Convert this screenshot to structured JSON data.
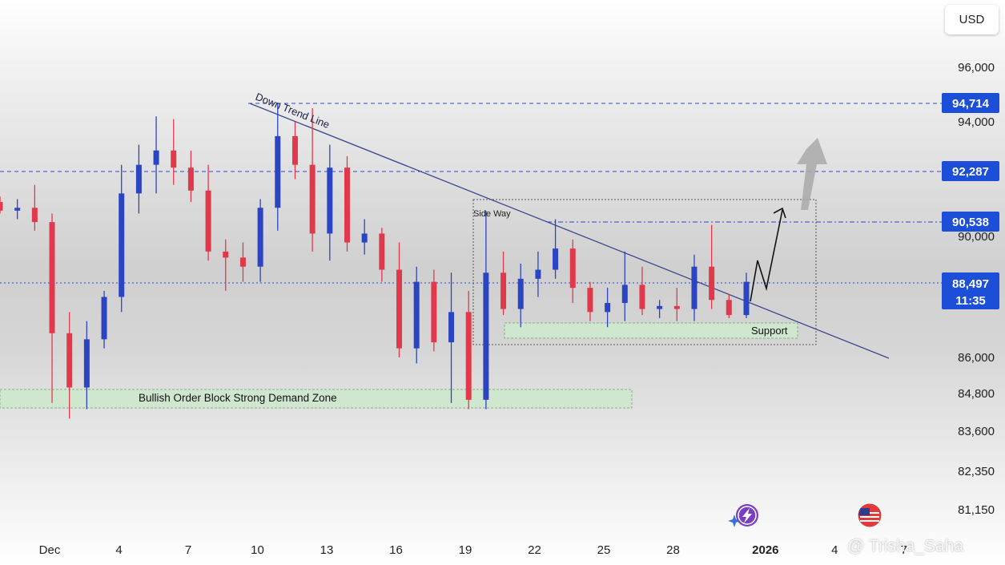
{
  "currency_button": "USD",
  "watermark": "@ Trisha_Saha",
  "price_tags": {
    "level_94714": "94,714",
    "level_92287": "92,287",
    "level_90538": "90,538",
    "current_price": "88,497",
    "countdown": "11:35"
  },
  "annotations": {
    "down_trend_line": "Down Trend Line",
    "side_way": "Side Way",
    "support": "Support",
    "demand_zone": "Bullish Order Block Strong Demand Zone"
  },
  "colors": {
    "bull": "#2b45c2",
    "bear": "#e0394b",
    "accent": "#1c4ed8",
    "zone_fill": "#cfe8cf",
    "trend_line": "#39488f"
  },
  "icons": [
    "lightning-event-icon",
    "us-flag-event-icon"
  ],
  "chart_data": {
    "type": "candlestick",
    "y_ticks": [
      {
        "value": 96000,
        "label": "96,000"
      },
      {
        "value": 94000,
        "label": "94,000"
      },
      {
        "value": 90000,
        "label": "90,000"
      },
      {
        "value": 86000,
        "label": "86,000"
      },
      {
        "value": 84800,
        "label": "84,800"
      },
      {
        "value": 83600,
        "label": "83,600"
      },
      {
        "value": 82350,
        "label": "82,350"
      },
      {
        "value": 81150,
        "label": "81,150"
      }
    ],
    "x_ticks": [
      {
        "day": 0,
        "label": "Dec"
      },
      {
        "day": 3,
        "label": "4"
      },
      {
        "day": 6,
        "label": "7"
      },
      {
        "day": 9,
        "label": "10"
      },
      {
        "day": 12,
        "label": "13"
      },
      {
        "day": 15,
        "label": "16"
      },
      {
        "day": 18,
        "label": "19"
      },
      {
        "day": 21,
        "label": "22"
      },
      {
        "day": 24,
        "label": "25"
      },
      {
        "day": 27,
        "label": "28"
      },
      {
        "day": 31,
        "label": "2026"
      },
      {
        "day": 34,
        "label": "4"
      },
      {
        "day": 37,
        "label": "7"
      }
    ],
    "x_unit": "days from Dec 1",
    "horizontal_levels": [
      94714,
      92287,
      90538
    ],
    "current_price": 88497,
    "ohlc": [
      [
        91.2,
        91.4,
        90.8,
        90.9
      ],
      [
        90.9,
        91.3,
        90.6,
        91.0
      ],
      [
        91.0,
        91.8,
        90.2,
        90.5
      ],
      [
        90.5,
        90.8,
        84.5,
        86.8
      ],
      [
        86.8,
        87.5,
        84.0,
        85.0
      ],
      [
        85.0,
        87.2,
        84.3,
        86.6
      ],
      [
        86.6,
        88.2,
        86.3,
        88.0
      ],
      [
        88.0,
        92.5,
        87.5,
        91.5
      ],
      [
        91.5,
        93.2,
        90.8,
        92.5
      ],
      [
        92.5,
        94.2,
        91.5,
        93.0
      ],
      [
        93.0,
        94.1,
        91.8,
        92.4
      ],
      [
        92.4,
        93.0,
        91.2,
        91.6
      ],
      [
        91.6,
        92.5,
        89.2,
        89.5
      ],
      [
        89.5,
        89.9,
        88.2,
        89.3
      ],
      [
        89.3,
        89.8,
        88.5,
        89.0
      ],
      [
        89.0,
        91.3,
        88.5,
        91.0
      ],
      [
        91.0,
        94.7,
        90.2,
        93.5
      ],
      [
        93.5,
        94.0,
        92.0,
        92.5
      ],
      [
        92.5,
        94.5,
        89.5,
        90.1
      ],
      [
        90.1,
        93.2,
        89.2,
        92.4
      ],
      [
        92.4,
        92.8,
        89.5,
        89.8
      ],
      [
        89.8,
        90.6,
        89.4,
        90.1
      ],
      [
        90.1,
        90.3,
        88.5,
        88.9
      ],
      [
        88.9,
        89.8,
        86.0,
        86.3
      ],
      [
        86.3,
        89.0,
        85.8,
        88.5
      ],
      [
        88.5,
        88.9,
        86.2,
        86.5
      ],
      [
        86.5,
        88.8,
        84.5,
        87.5
      ],
      [
        87.5,
        88.2,
        84.3,
        84.6
      ],
      [
        84.6,
        90.9,
        84.3,
        88.8
      ],
      [
        88.8,
        89.5,
        87.4,
        87.6
      ],
      [
        87.6,
        89.1,
        87.0,
        88.6
      ],
      [
        88.6,
        89.5,
        88.0,
        88.9
      ],
      [
        88.9,
        90.6,
        88.6,
        89.6
      ],
      [
        89.6,
        89.9,
        87.8,
        88.3
      ],
      [
        88.3,
        88.5,
        87.2,
        87.5
      ],
      [
        87.5,
        88.3,
        87.0,
        87.8
      ],
      [
        87.8,
        89.5,
        87.2,
        88.4
      ],
      [
        88.4,
        89.0,
        87.4,
        87.6
      ],
      [
        87.6,
        87.9,
        87.3,
        87.7
      ],
      [
        87.7,
        88.3,
        87.2,
        87.6
      ],
      [
        87.6,
        89.4,
        87.2,
        89.0
      ],
      [
        89.0,
        90.4,
        87.6,
        87.9
      ],
      [
        87.9,
        88.1,
        87.3,
        87.4
      ],
      [
        87.4,
        88.8,
        87.3,
        88.5
      ]
    ]
  }
}
